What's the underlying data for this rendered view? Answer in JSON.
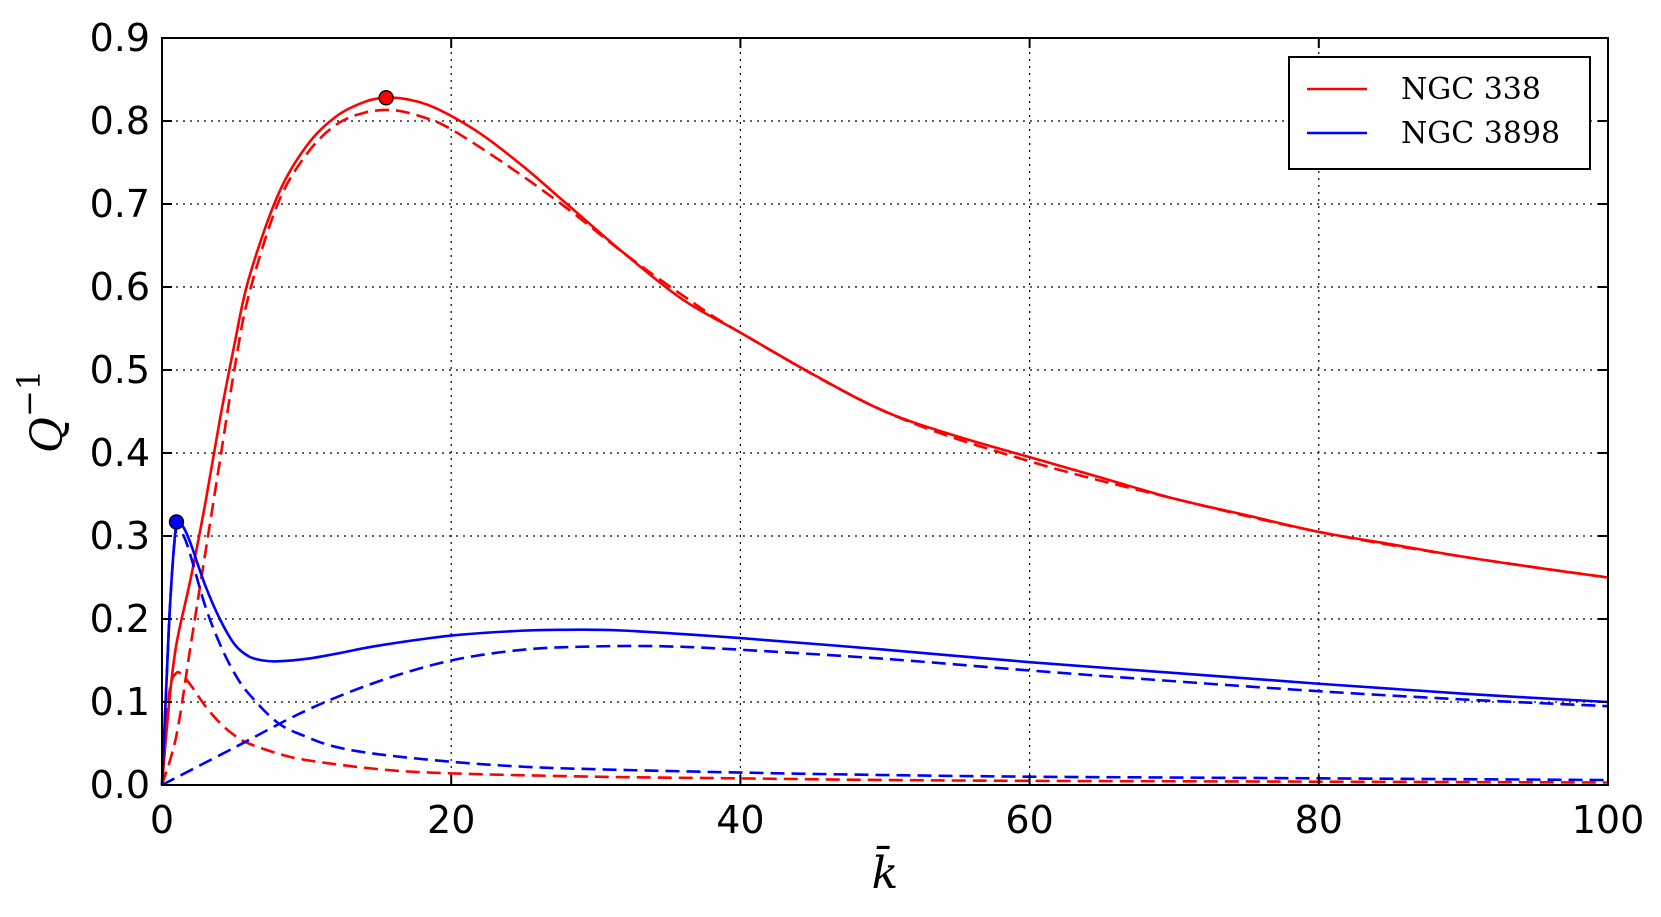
{
  "chart_data": {
    "type": "line",
    "title": "",
    "xlabel": "k̄",
    "ylabel": "Q",
    "ylabel_superscript": "−1",
    "xlim": [
      0,
      100
    ],
    "ylim": [
      0,
      0.9
    ],
    "xticks": [
      "0",
      "20",
      "40",
      "60",
      "80",
      "100"
    ],
    "yticks": [
      "0.0",
      "0.1",
      "0.2",
      "0.3",
      "0.4",
      "0.5",
      "0.6",
      "0.7",
      "0.8",
      "0.9"
    ],
    "grid": true,
    "legend_position": "top-right",
    "series": [
      {
        "name": "NGC 338",
        "color": "#ff0000",
        "style": "solid",
        "x": [
          0,
          0.5,
          1,
          2,
          3,
          4,
          5,
          6,
          8,
          10,
          12,
          14,
          15.5,
          17,
          19,
          22,
          25,
          28,
          32,
          36,
          40,
          45,
          50,
          55,
          60,
          65,
          70,
          75,
          80,
          85,
          90,
          95,
          100
        ],
        "y": [
          0,
          0.1,
          0.17,
          0.25,
          0.34,
          0.44,
          0.53,
          0.61,
          0.71,
          0.77,
          0.805,
          0.823,
          0.828,
          0.826,
          0.815,
          0.785,
          0.745,
          0.7,
          0.64,
          0.585,
          0.545,
          0.495,
          0.45,
          0.42,
          0.395,
          0.37,
          0.345,
          0.325,
          0.305,
          0.29,
          0.275,
          0.262,
          0.25
        ]
      },
      {
        "name": "",
        "color": "#ff0000",
        "style": "dashed",
        "x": [
          0,
          1,
          2,
          3,
          4,
          5,
          6,
          8,
          10,
          12,
          14,
          16,
          18,
          20,
          24,
          28,
          32,
          36,
          40,
          50,
          60,
          70,
          80,
          90,
          100
        ],
        "y": [
          0,
          0.06,
          0.17,
          0.28,
          0.39,
          0.5,
          0.59,
          0.7,
          0.76,
          0.795,
          0.81,
          0.813,
          0.805,
          0.79,
          0.745,
          0.695,
          0.64,
          0.59,
          0.545,
          0.45,
          0.39,
          0.345,
          0.305,
          0.275,
          0.25
        ]
      },
      {
        "name": "",
        "color": "#ff0000",
        "style": "dashed",
        "x": [
          0,
          0.5,
          1,
          1.5,
          2,
          3,
          4,
          5,
          6,
          8,
          10,
          15,
          20,
          30,
          40,
          50,
          60,
          80,
          100
        ],
        "y": [
          0,
          0.11,
          0.135,
          0.13,
          0.12,
          0.095,
          0.075,
          0.06,
          0.05,
          0.038,
          0.03,
          0.019,
          0.014,
          0.01,
          0.008,
          0.006,
          0.005,
          0.004,
          0.003
        ]
      },
      {
        "name": "NGC 3898",
        "color": "#0000ff",
        "style": "solid",
        "x": [
          0,
          0.3,
          0.6,
          1,
          1.5,
          2,
          3,
          4,
          5,
          6,
          7,
          8,
          10,
          12,
          15,
          20,
          25,
          28,
          32,
          40,
          50,
          60,
          70,
          80,
          90,
          100
        ],
        "y": [
          0,
          0.12,
          0.23,
          0.315,
          0.31,
          0.29,
          0.24,
          0.2,
          0.17,
          0.155,
          0.15,
          0.149,
          0.152,
          0.158,
          0.168,
          0.18,
          0.186,
          0.187,
          0.186,
          0.177,
          0.163,
          0.148,
          0.135,
          0.122,
          0.11,
          0.1
        ]
      },
      {
        "name": "",
        "color": "#0000ff",
        "style": "dashed",
        "x": [
          0,
          0.3,
          0.6,
          1,
          1.5,
          2,
          3,
          4,
          5,
          6,
          8,
          10,
          12,
          15,
          20,
          25,
          30,
          40,
          50,
          60,
          70,
          80,
          90,
          100
        ],
        "y": [
          0,
          0.12,
          0.23,
          0.31,
          0.3,
          0.275,
          0.215,
          0.17,
          0.135,
          0.11,
          0.075,
          0.058,
          0.046,
          0.037,
          0.028,
          0.022,
          0.019,
          0.015,
          0.012,
          0.01,
          0.009,
          0.008,
          0.007,
          0.006
        ]
      },
      {
        "name": "",
        "color": "#0000ff",
        "style": "dashed",
        "x": [
          0,
          5,
          10,
          15,
          20,
          25,
          30,
          35,
          40,
          50,
          60,
          70,
          80,
          90,
          100
        ],
        "y": [
          0,
          0.045,
          0.09,
          0.125,
          0.15,
          0.163,
          0.167,
          0.167,
          0.163,
          0.152,
          0.138,
          0.125,
          0.113,
          0.103,
          0.095
        ]
      }
    ],
    "markers": [
      {
        "x": 15.5,
        "y": 0.828,
        "color": "#ff0000"
      },
      {
        "x": 1.0,
        "y": 0.317,
        "color": "#0000ff"
      }
    ]
  }
}
